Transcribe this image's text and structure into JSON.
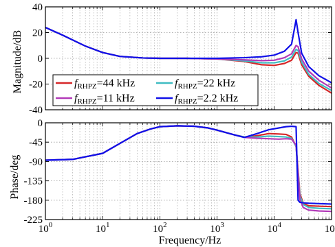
{
  "chart_data": [
    {
      "type": "line",
      "xlabel": "",
      "ylabel": "Magnitude/dB",
      "xscale": "log",
      "xlim": [
        1,
        100000
      ],
      "ylim": [
        -40,
        40
      ],
      "yticks": [
        "-40",
        "-20",
        "0",
        "20",
        "40"
      ],
      "grid": "dotted",
      "legend": {
        "placement": "lower-left",
        "entries": [
          {
            "var": "f",
            "sub": "RHPZ",
            "rest": "=44 kHz"
          },
          {
            "var": "f",
            "sub": "RHPZ",
            "rest": "=22 kHz"
          },
          {
            "var": "f",
            "sub": "RHPZ",
            "rest": "=11 kHz"
          },
          {
            "var": "f",
            "sub": "RHPZ",
            "rest": "=2.2 kHz"
          }
        ]
      },
      "series": [
        {
          "name": "fRHPZ=44 kHz",
          "color": "#d62728",
          "x": [
            1,
            2,
            5,
            10,
            20,
            50,
            100,
            300,
            1000,
            3000,
            6000,
            10000,
            15000,
            20000,
            24000,
            26000,
            30000,
            40000,
            60000,
            100000
          ],
          "y": [
            24,
            18,
            9.5,
            4.5,
            1.5,
            0.3,
            0,
            0,
            -0.5,
            -2.5,
            -5,
            -5.5,
            -4,
            -1.5,
            4.5,
            4,
            -5,
            -14,
            -21,
            -27
          ]
        },
        {
          "name": "fRHPZ=22 kHz",
          "color": "#3fbcc2",
          "x": [
            1,
            2,
            5,
            10,
            20,
            50,
            100,
            300,
            1000,
            3000,
            6000,
            10000,
            15000,
            20000,
            24000,
            26000,
            30000,
            40000,
            60000,
            100000
          ],
          "y": [
            24,
            18,
            9.5,
            4.5,
            1.5,
            0.3,
            0,
            0,
            -0.5,
            -2,
            -3.5,
            -3.5,
            -2,
            1,
            7,
            6,
            -3,
            -12.5,
            -19.5,
            -25
          ]
        },
        {
          "name": "fRHPZ=11 kHz",
          "color": "#b23ab8",
          "x": [
            1,
            2,
            5,
            10,
            20,
            50,
            100,
            300,
            1000,
            3000,
            6000,
            10000,
            15000,
            20000,
            24000,
            26000,
            30000,
            40000,
            60000,
            100000
          ],
          "y": [
            24,
            18,
            9.5,
            4.5,
            1.5,
            0.3,
            0,
            0,
            -0.5,
            -1.2,
            -1.8,
            -1.5,
            0.5,
            3.5,
            10,
            9,
            -0.5,
            -10,
            -17,
            -23
          ]
        },
        {
          "name": "fRHPZ=2.2 kHz",
          "color": "#1010e8",
          "x": [
            1,
            2,
            5,
            10,
            20,
            50,
            100,
            300,
            1000,
            3000,
            6000,
            10000,
            15000,
            20000,
            24000,
            26000,
            30000,
            40000,
            60000,
            100000
          ],
          "y": [
            24,
            18,
            9.5,
            4.5,
            1.5,
            0.3,
            0,
            0,
            0,
            0.5,
            1.2,
            2.5,
            5.5,
            11,
            30,
            20,
            4,
            -6.5,
            -13.5,
            -19
          ]
        }
      ]
    },
    {
      "type": "line",
      "xlabel": "Frequency/Hz",
      "ylabel": "Phase/deg",
      "xscale": "log",
      "xlim": [
        1,
        100000
      ],
      "ylim": [
        -225,
        0
      ],
      "yticks": [
        "-225",
        "-180",
        "-135",
        "-90",
        "-45",
        "0"
      ],
      "xticks": [
        {
          "base": "10",
          "exp": "0"
        },
        {
          "base": "10",
          "exp": "1"
        },
        {
          "base": "10",
          "exp": "2"
        },
        {
          "base": "10",
          "exp": "3"
        },
        {
          "base": "10",
          "exp": "4"
        },
        {
          "base": "10",
          "exp": "5"
        }
      ],
      "grid": "dotted",
      "series": [
        {
          "name": "fRHPZ=44 kHz",
          "color": "#d62728",
          "x": [
            1,
            3,
            10,
            20,
            40,
            70,
            100,
            200,
            400,
            700,
            1000,
            2000,
            3000,
            5000,
            8000,
            12000,
            16000,
            20000,
            24000,
            26000,
            28000,
            32000,
            40000,
            60000,
            100000
          ],
          "y": [
            -87,
            -85,
            -71,
            -48,
            -25,
            -14,
            -9,
            -7,
            -8,
            -12,
            -17,
            -28,
            -33,
            -30,
            -25,
            -26,
            -27,
            -33,
            -55,
            -110,
            -165,
            -187,
            -193,
            -194,
            -195
          ]
        },
        {
          "name": "fRHPZ=22 kHz",
          "color": "#3fbcc2",
          "x": [
            1,
            3,
            10,
            20,
            40,
            70,
            100,
            200,
            400,
            700,
            1000,
            2000,
            3000,
            5000,
            8000,
            12000,
            16000,
            20000,
            24000,
            26000,
            28000,
            32000,
            40000,
            60000,
            100000
          ],
          "y": [
            -87,
            -85,
            -71,
            -48,
            -25,
            -14,
            -9,
            -7,
            -8,
            -12,
            -17,
            -28,
            -33,
            -33,
            -31,
            -32,
            -33,
            -36,
            -55,
            -115,
            -170,
            -190,
            -197,
            -199,
            -200
          ]
        },
        {
          "name": "fRHPZ=11 kHz",
          "color": "#b23ab8",
          "x": [
            1,
            3,
            10,
            20,
            40,
            70,
            100,
            200,
            400,
            700,
            1000,
            2000,
            3000,
            5000,
            8000,
            12000,
            16000,
            20000,
            24000,
            26000,
            28000,
            32000,
            40000,
            60000,
            100000
          ],
          "y": [
            -87,
            -85,
            -71,
            -48,
            -25,
            -14,
            -9,
            -7,
            -8,
            -12,
            -17,
            -28,
            -34,
            -36,
            -37,
            -38,
            -37,
            -38,
            -52,
            -120,
            -178,
            -197,
            -203,
            -205,
            -206
          ]
        },
        {
          "name": "fRHPZ=2.2 kHz",
          "color": "#1010e8",
          "x": [
            1,
            3,
            10,
            20,
            40,
            70,
            100,
            200,
            400,
            700,
            1000,
            2000,
            3000,
            5000,
            8000,
            12000,
            16000,
            20000,
            24000,
            25000,
            26000,
            28000,
            32000,
            40000,
            60000,
            100000
          ],
          "y": [
            -87,
            -85,
            -71,
            -48,
            -25,
            -14,
            -9,
            -7,
            -8,
            -12,
            -17,
            -28,
            -34,
            -25,
            -16,
            -12,
            -9,
            -8,
            -9,
            -100,
            -180,
            -185,
            -186,
            -187,
            -188,
            -189
          ]
        }
      ]
    }
  ]
}
